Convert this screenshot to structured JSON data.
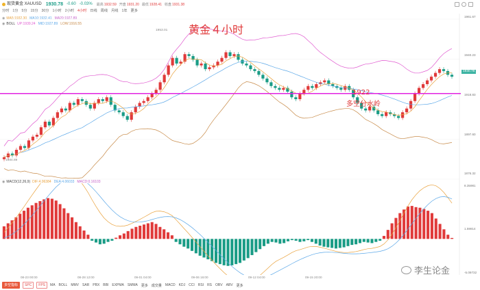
{
  "header": {
    "symbol": "现货黄金 XAUUSD",
    "price": "1930.78",
    "change": "-0.60",
    "change_pct": "-0.03%",
    "stats": [
      {
        "label": "最高",
        "value": "1932.59"
      },
      {
        "label": "开盘",
        "value": "1931.20"
      },
      {
        "label": "最低",
        "value": "1928.41"
      },
      {
        "label": "收盘",
        "value": "1931.38"
      }
    ],
    "timeframes": [
      "分时",
      "1分",
      "5分",
      "15分",
      "30分",
      "1小时",
      "2小时",
      "4小时",
      "日线",
      "周线",
      "月线",
      "1年",
      "更多"
    ],
    "active_timeframe": "4小时",
    "up_color": "#e03a3a",
    "down_color": "#1a9c86"
  },
  "legends": {
    "ma": [
      {
        "text": "MA5:1932.30",
        "color": "#e9a13b"
      },
      {
        "text": "MA10:1932.41",
        "color": "#5aa7e8"
      },
      {
        "text": "MA20:1927.89",
        "color": "#c45fc9"
      }
    ],
    "boll": {
      "title": "BOLL",
      "items": [
        {
          "text": "UP:1939.24",
          "color": "#e05ad0"
        },
        {
          "text": "MID:1927.89",
          "color": "#5aa7e8"
        },
        {
          "text": "LOW:1916.55",
          "color": "#c78a48"
        }
      ]
    },
    "macd": {
      "title": "MACD(12,26,9)",
      "items": [
        {
          "text": "DIF:4.06384",
          "color": "#e9a13b"
        },
        {
          "text": "DEA:4.06033",
          "color": "#5aa7e8"
        },
        {
          "text": "MACD:0.16103",
          "color": "#c45fc9"
        }
      ]
    }
  },
  "annotations": {
    "title": "黄金４小时",
    "level": "1922",
    "level_caption": "多空分水岭",
    "high_mark": "1953.01",
    "low_mark": "1884.89"
  },
  "price_axis": [
    "1961.67",
    "1940.23",
    "1918.83",
    "1897.60",
    "1876.32"
  ],
  "macd_axis": [
    "8.35981",
    "1.59814",
    "-5.09732"
  ],
  "current_price_tag": "1930.78",
  "date_labels": [
    "08-23 00:00",
    "08-28 12:00",
    "09-01 04:00",
    "09-06 16:00",
    "09-12 04:00",
    "09-15 20:00"
  ],
  "footer": {
    "chips": [
      "多空指标",
      "SPC",
      "FPS"
    ],
    "indicators": [
      "MA",
      "BOLL",
      "MMV",
      "SAR",
      "PBX",
      "BBI",
      "EXPMA",
      "SMMA",
      "更多",
      "成交量",
      "MACD",
      "KDJ",
      "CCI",
      "RSI",
      "RS",
      "OBV",
      "ABV",
      "更多"
    ]
  },
  "watermark": "李生论金",
  "chart_data": [
    {
      "type": "candlestick",
      "title": "黄金４小时",
      "timeframe": "4小时",
      "ylim": [
        1876.32,
        1961.67
      ],
      "x_ticks": [
        "08-23 00:00",
        "08-28 12:00",
        "09-01 04:00",
        "09-06 16:00",
        "09-12 04:00",
        "09-15 20:00"
      ],
      "series": [
        {
          "name": "MA5",
          "value": 1932.3
        },
        {
          "name": "MA10",
          "value": 1932.41
        },
        {
          "name": "MA20",
          "value": 1927.89
        },
        {
          "name": "BOLL UP",
          "value": 1939.24
        },
        {
          "name": "BOLL MID",
          "value": 1927.89
        },
        {
          "name": "BOLL LOW",
          "value": 1916.55
        }
      ],
      "closes": [
        1888,
        1890,
        1889,
        1892,
        1894,
        1893,
        1897,
        1899,
        1900,
        1904,
        1907,
        1905,
        1909,
        1912,
        1914,
        1913,
        1917,
        1916,
        1919,
        1918,
        1916,
        1914,
        1917,
        1919,
        1918,
        1920,
        1916,
        1913,
        1912,
        1910,
        1908,
        1912,
        1915,
        1917,
        1918,
        1920,
        1922,
        1924,
        1928,
        1932,
        1937,
        1941,
        1938,
        1939,
        1943,
        1942,
        1940,
        1937,
        1938,
        1935,
        1936,
        1937,
        1939,
        1941,
        1944,
        1942,
        1943,
        1940,
        1938,
        1937,
        1935,
        1934,
        1932,
        1930,
        1928,
        1926,
        1925,
        1924,
        1925,
        1923,
        1920,
        1919,
        1922,
        1924,
        1926,
        1925,
        1927,
        1928,
        1929,
        1927,
        1926,
        1925,
        1924,
        1926,
        1924,
        1920,
        1917,
        1914,
        1913,
        1915,
        1913,
        1911,
        1910,
        1912,
        1911,
        1910,
        1909,
        1912,
        1914,
        1918,
        1922,
        1925,
        1927,
        1929,
        1931,
        1933,
        1935,
        1934,
        1932,
        1931
      ],
      "horizontal_line": {
        "value": 1922,
        "label": "1922 多空分水岭"
      }
    },
    {
      "type": "bar",
      "title": "MACD(12,26,9)",
      "ylim": [
        -5.09732,
        8.35981
      ],
      "series": [
        {
          "name": "DIF",
          "value": 4.06384
        },
        {
          "name": "DEA",
          "value": 4.06033
        },
        {
          "name": "MACD",
          "value": 0.16103
        }
      ],
      "values": [
        2.1,
        2.6,
        3.1,
        3.6,
        4.2,
        4.7,
        5.2,
        5.6,
        6.0,
        6.3,
        6.6,
        6.8,
        6.7,
        6.4,
        5.8,
        5.1,
        4.3,
        3.6,
        2.8,
        2.1,
        1.4,
        0.7,
        -0.3,
        -0.6,
        -0.9,
        -0.8,
        -0.5,
        -0.3,
        0.2,
        0.6,
        0.9,
        1.3,
        1.7,
        2.0,
        2.2,
        2.4,
        2.6,
        2.8,
        2.5,
        2.0,
        1.6,
        1.1,
        0.6,
        -0.5,
        -0.9,
        -1.3,
        -1.6,
        -2.0,
        -2.4,
        -2.8,
        -3.1,
        -3.4,
        -3.7,
        -4.0,
        -4.2,
        -4.4,
        -4.5,
        -4.4,
        -4.2,
        -4.0,
        -3.6,
        -3.2,
        -2.7,
        -2.2,
        -1.7,
        -1.2,
        -0.8,
        -0.5,
        -0.6,
        -0.8,
        -0.7,
        -0.4,
        -0.2,
        -0.3,
        -0.5,
        -0.4,
        -0.2,
        -0.5,
        -0.8,
        -1.1,
        -1.3,
        -1.4,
        -1.5,
        -1.6,
        -1.5,
        -1.4,
        -1.2,
        -1.0,
        -0.9,
        -0.7,
        -0.5,
        -0.6,
        -0.7,
        -0.5,
        -0.3,
        0.5,
        1.5,
        2.6,
        3.5,
        4.3,
        4.9,
        5.4,
        5.5,
        5.3,
        5.2,
        5.0,
        4.7,
        4.3,
        3.4,
        2.5,
        1.6,
        0.7,
        0.16
      ]
    }
  ]
}
